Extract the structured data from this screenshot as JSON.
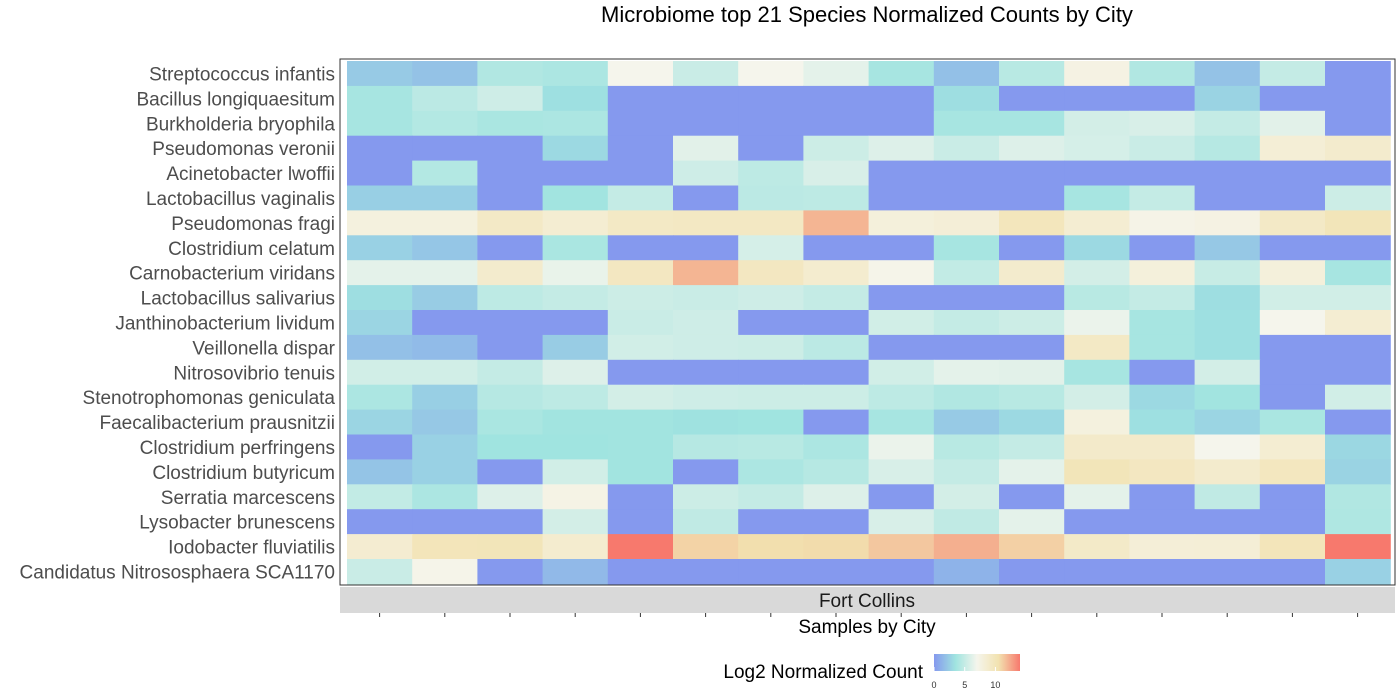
{
  "chart_data": {
    "type": "heatmap",
    "title": "Microbiome top 21 Species Normalized Counts by City",
    "xlabel": "Samples by City",
    "facet_label": "Fort Collins",
    "legend": {
      "title": "Log2 Normalized Count",
      "ticks": [
        0,
        5,
        10
      ],
      "range": [
        0,
        14
      ],
      "colors": [
        "#8599EE",
        "#A0E4E0",
        "#F5F5EC",
        "#F2E2B0",
        "#F7796D"
      ],
      "placement": "bottom"
    },
    "num_samples": 16,
    "rows": [
      {
        "label": "Streptococcus infantis",
        "values": [
          2.3,
          1.9,
          4.2,
          4.0,
          7.0,
          5.2,
          7.0,
          6.3,
          3.8,
          1.8,
          4.5,
          7.5,
          4.2,
          1.9,
          5.0,
          0
        ]
      },
      {
        "label": "Bacillus longiquaesitum",
        "values": [
          3.8,
          4.6,
          5.4,
          3.3,
          0,
          0,
          0,
          0,
          0,
          3.2,
          0,
          0,
          0,
          2.7,
          0,
          0
        ]
      },
      {
        "label": "Burkholderia bryophila",
        "values": [
          3.8,
          4.3,
          3.9,
          4.0,
          0,
          0,
          0,
          0,
          0,
          3.8,
          3.8,
          5.6,
          5.8,
          5.0,
          6.2,
          0
        ]
      },
      {
        "label": "Pseudomonas veronii",
        "values": [
          0,
          0,
          0,
          3.0,
          0,
          6.2,
          0,
          5.3,
          6.0,
          5.2,
          6.0,
          5.7,
          5.2,
          4.4,
          8.3,
          8.8
        ]
      },
      {
        "label": "Acinetobacter lwoffii",
        "values": [
          0,
          4.3,
          0,
          0,
          0,
          5.4,
          4.7,
          5.8,
          0,
          0,
          0,
          0,
          0,
          0,
          0,
          0
        ]
      },
      {
        "label": "Lactobacillus vaginalis",
        "values": [
          2.5,
          2.5,
          0,
          3.6,
          5.0,
          0,
          4.6,
          4.7,
          0,
          0,
          0,
          3.8,
          5.0,
          0,
          0,
          5.3
        ]
      },
      {
        "label": "Pseudomonas fragi",
        "values": [
          7.8,
          7.8,
          9.2,
          8.5,
          9.3,
          9.4,
          9.4,
          12.0,
          8.0,
          8.2,
          9.8,
          8.5,
          7.3,
          7.5,
          9.2,
          10.0
        ]
      },
      {
        "label": "Clostridium celatum",
        "values": [
          2.6,
          2.1,
          0,
          3.9,
          0,
          0,
          5.7,
          0,
          0,
          3.8,
          0,
          3.0,
          0,
          2.2,
          0,
          0
        ]
      },
      {
        "label": "Carnobacterium viridans",
        "values": [
          6.3,
          6.3,
          8.8,
          6.5,
          9.5,
          12.0,
          9.5,
          8.7,
          7.2,
          4.9,
          8.8,
          5.6,
          8.0,
          5.1,
          8.0,
          3.8
        ]
      },
      {
        "label": "Lactobacillus salivarius",
        "values": [
          3.2,
          2.4,
          4.7,
          5.0,
          5.3,
          5.2,
          5.4,
          5.0,
          0,
          0,
          0,
          4.5,
          5.0,
          3.2,
          5.5,
          5.5
        ]
      },
      {
        "label": "Janthinobacterium lividum",
        "values": [
          2.8,
          0,
          0,
          0,
          5.2,
          5.4,
          0,
          0,
          5.5,
          5.0,
          5.3,
          6.6,
          3.8,
          3.3,
          7.0,
          8.5
        ]
      },
      {
        "label": "Veillonella dispar",
        "values": [
          1.8,
          1.6,
          0,
          2.4,
          5.5,
          5.4,
          5.3,
          4.6,
          0,
          0,
          0,
          9.3,
          3.8,
          3.3,
          0,
          0
        ]
      },
      {
        "label": "Nitrosovibrio tenuis",
        "values": [
          5.5,
          5.5,
          5.0,
          6.0,
          0,
          0,
          0,
          0,
          5.5,
          6.3,
          6.2,
          3.8,
          0,
          5.6,
          0,
          0
        ]
      },
      {
        "label": "Stenotrophomonas geniculata",
        "values": [
          4.0,
          2.5,
          4.4,
          4.7,
          5.6,
          5.4,
          5.3,
          5.3,
          4.7,
          4.2,
          4.5,
          5.6,
          3.0,
          3.6,
          0,
          5.5
        ]
      },
      {
        "label": "Faecalibacterium prausnitzii",
        "values": [
          2.8,
          2.2,
          3.9,
          3.6,
          3.6,
          3.4,
          3.5,
          0,
          3.8,
          2.3,
          3.0,
          7.8,
          3.3,
          2.8,
          3.9,
          0
        ]
      },
      {
        "label": "Clostridium perfringens",
        "values": [
          0,
          2.6,
          3.5,
          3.5,
          3.6,
          4.4,
          4.5,
          4.0,
          6.6,
          4.5,
          5.0,
          9.0,
          9.0,
          7.0,
          8.5,
          2.9
        ]
      },
      {
        "label": "Clostridium butyricum",
        "values": [
          2.0,
          2.6,
          0,
          5.5,
          3.6,
          0,
          4.0,
          4.4,
          5.8,
          5.0,
          6.3,
          10.0,
          9.5,
          8.8,
          9.6,
          2.7
        ]
      },
      {
        "label": "Serratia marcescens",
        "values": [
          4.9,
          4.0,
          6.0,
          7.4,
          0,
          5.3,
          5.0,
          6.0,
          0,
          5.6,
          0,
          6.3,
          0,
          4.8,
          0,
          4.2
        ]
      },
      {
        "label": "Lysobacter brunescens",
        "values": [
          0,
          0,
          0,
          5.6,
          0,
          4.8,
          0,
          0,
          5.8,
          4.8,
          6.3,
          0,
          0,
          0,
          0,
          4.1
        ]
      },
      {
        "label": "Iodobacter fluviatilis",
        "values": [
          8.6,
          9.9,
          10.0,
          8.7,
          14.0,
          11.0,
          10.6,
          10.7,
          11.4,
          12.2,
          11.1,
          9.1,
          8.2,
          8.3,
          9.9,
          14.0
        ]
      },
      {
        "label": "Candidatus Nitrososphaera SCA1170",
        "values": [
          5.2,
          7.2,
          0,
          1.5,
          0,
          0,
          0,
          0,
          0,
          1.2,
          0,
          0,
          0,
          0,
          0,
          2.6
        ]
      }
    ]
  }
}
